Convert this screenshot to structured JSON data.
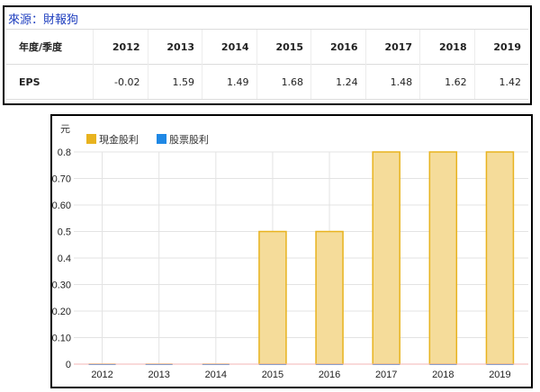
{
  "source": {
    "label": "來源：財報狗"
  },
  "eps_table": {
    "header_label": "年度/季度",
    "row_label": "EPS",
    "years": [
      "2012",
      "2013",
      "2014",
      "2015",
      "2016",
      "2017",
      "2018",
      "2019"
    ],
    "values": [
      "-0.02",
      "1.59",
      "1.49",
      "1.68",
      "1.24",
      "1.48",
      "1.62",
      "1.42"
    ]
  },
  "chart_data": {
    "type": "bar",
    "ylabel": "元",
    "categories": [
      "2012",
      "2013",
      "2014",
      "2015",
      "2016",
      "2017",
      "2018",
      "2019"
    ],
    "series": [
      {
        "name": "現金股利",
        "values": [
          0,
          0,
          0,
          0.5,
          0.5,
          0.8,
          0.8,
          0.8
        ],
        "color": "#e8b31f",
        "fill": "#f5dc9a"
      },
      {
        "name": "股票股利",
        "values": [
          0,
          0,
          0,
          0,
          0,
          0,
          0,
          0
        ],
        "color": "#1f88e5"
      }
    ],
    "ylim": [
      0,
      0.8
    ],
    "yticks": [
      {
        "value": 0,
        "label": "0"
      },
      {
        "value": 0.1,
        "label": "0.10"
      },
      {
        "value": 0.2,
        "label": "0.20"
      },
      {
        "value": 0.3,
        "label": "0.30"
      },
      {
        "value": 0.4,
        "label": "0.4"
      },
      {
        "value": 0.5,
        "label": "0.5"
      },
      {
        "value": 0.6,
        "label": "0.60"
      },
      {
        "value": 0.7,
        "label": "0.70"
      },
      {
        "value": 0.8,
        "label": "0.8"
      }
    ],
    "grid": true,
    "legend": "top-left"
  }
}
